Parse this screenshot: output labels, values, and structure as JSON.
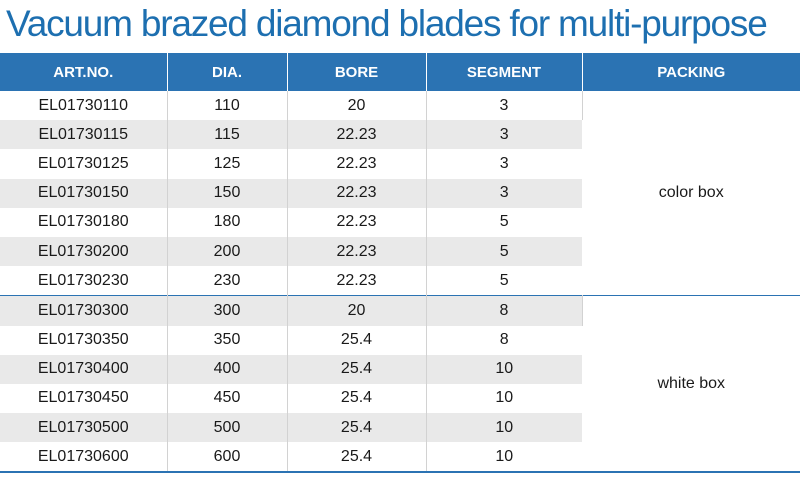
{
  "title": "Vacuum brazed diamond blades for multi-purpose",
  "headers": [
    "ART.NO.",
    "DIA.",
    "BORE",
    "SEGMENT",
    "PACKING"
  ],
  "groups": [
    {
      "packing": "color box",
      "rows": [
        {
          "art": "EL01730110",
          "dia": "110",
          "bore": "20",
          "segment": "3"
        },
        {
          "art": "EL01730115",
          "dia": "115",
          "bore": "22.23",
          "segment": "3"
        },
        {
          "art": "EL01730125",
          "dia": "125",
          "bore": "22.23",
          "segment": "3"
        },
        {
          "art": "EL01730150",
          "dia": "150",
          "bore": "22.23",
          "segment": "3"
        },
        {
          "art": "EL01730180",
          "dia": "180",
          "bore": "22.23",
          "segment": "5"
        },
        {
          "art": "EL01730200",
          "dia": "200",
          "bore": "22.23",
          "segment": "5"
        },
        {
          "art": "EL01730230",
          "dia": "230",
          "bore": "22.23",
          "segment": "5"
        }
      ]
    },
    {
      "packing": "white box",
      "rows": [
        {
          "art": "EL01730300",
          "dia": "300",
          "bore": "20",
          "segment": "8"
        },
        {
          "art": "EL01730350",
          "dia": "350",
          "bore": "25.4",
          "segment": "8"
        },
        {
          "art": "EL01730400",
          "dia": "400",
          "bore": "25.4",
          "segment": "10"
        },
        {
          "art": "EL01730450",
          "dia": "450",
          "bore": "25.4",
          "segment": "10"
        },
        {
          "art": "EL01730500",
          "dia": "500",
          "bore": "25.4",
          "segment": "10"
        },
        {
          "art": "EL01730600",
          "dia": "600",
          "bore": "25.4",
          "segment": "10"
        }
      ]
    }
  ],
  "colors": {
    "accent": "#2b73b3",
    "title": "#1d6fb0",
    "stripe": "#e9e9e9"
  }
}
